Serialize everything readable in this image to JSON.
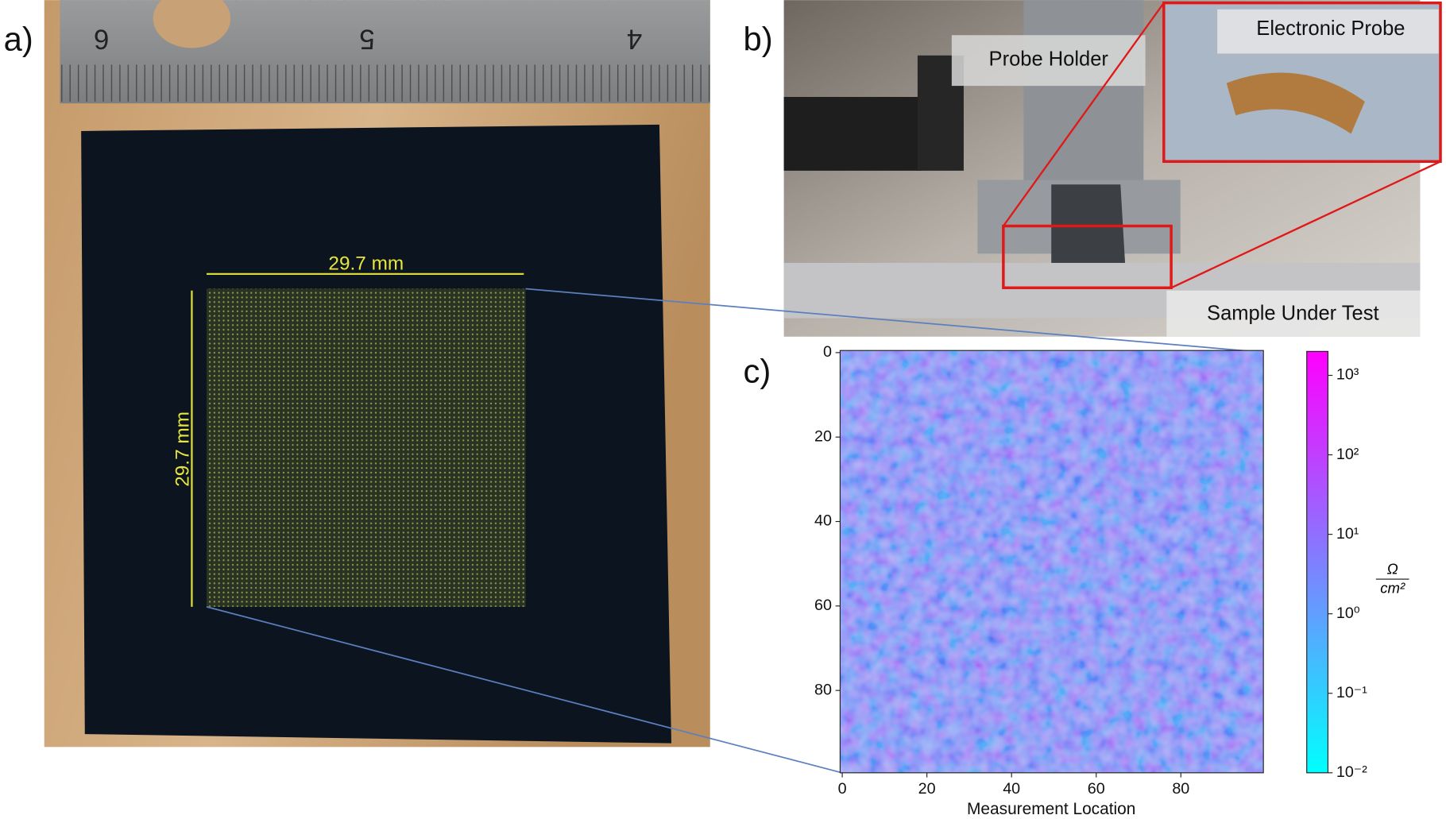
{
  "panels": {
    "a": {
      "label": "a)",
      "ruler_numbers": [
        "6",
        "5",
        "4"
      ],
      "width_label": "29.7 mm",
      "height_label": "29.7 mm"
    },
    "b": {
      "label": "b)",
      "callouts": [
        "Probe Holder",
        "Electronic Probe",
        "Sample Under Test"
      ]
    },
    "c": {
      "label": "c)"
    }
  },
  "chart_data": {
    "type": "heatmap",
    "xlabel": "Measurement Location",
    "xlim": [
      -0.5,
      99.5
    ],
    "ylim": [
      99.5,
      -0.5
    ],
    "xticks": [
      0,
      20,
      40,
      60,
      80
    ],
    "yticks": [
      0,
      20,
      40,
      60,
      80
    ],
    "colorbar": {
      "scale": "log",
      "lim": [
        0.01,
        2000
      ],
      "ticks": [
        {
          "value": 0.01,
          "label": "10⁻²"
        },
        {
          "value": 0.1,
          "label": "10⁻¹"
        },
        {
          "value": 1,
          "label": "10⁰"
        },
        {
          "value": 10,
          "label": "10¹"
        },
        {
          "value": 100,
          "label": "10²"
        },
        {
          "value": 1000,
          "label": "10³"
        }
      ],
      "unit_numerator": "Ω",
      "unit_denominator": "cm²",
      "colors": [
        "#00ffff",
        "#ff00ff"
      ]
    }
  }
}
